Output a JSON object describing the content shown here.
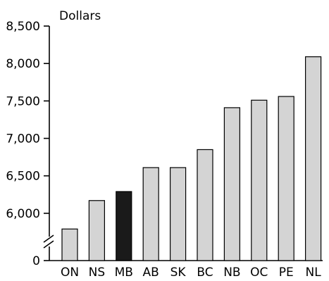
{
  "chart_data": {
    "type": "bar",
    "title": "",
    "ylabel": "Dollars",
    "xlabel": "",
    "categories": [
      "ON",
      "NS",
      "MB",
      "AB",
      "SK",
      "BC",
      "NB",
      "OC",
      "PE",
      "NL"
    ],
    "values": [
      5790,
      6170,
      6290,
      6610,
      6610,
      6850,
      7410,
      7510,
      7560,
      8090
    ],
    "y_tick_labels": [
      "0",
      "6,000",
      "6,500",
      "7,000",
      "7,500",
      "8,000",
      "8,500"
    ],
    "y_tick_values": [
      0,
      6000,
      6500,
      7000,
      7500,
      8000,
      8500
    ],
    "ylim": [
      5500,
      8500
    ],
    "axis_break": true,
    "grid": false,
    "highlight_category": "MB",
    "colors": {
      "bar_fill": "#d4d4d4",
      "highlight_fill": "#1a1a1a",
      "bar_stroke": "#000000",
      "axis": "#000000"
    }
  }
}
